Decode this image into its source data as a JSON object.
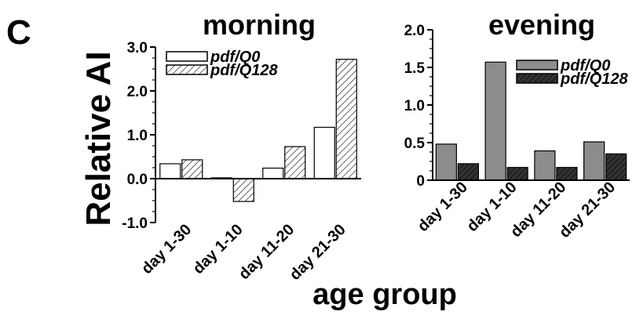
{
  "panel_label": "C",
  "ylabel": "Relative AI",
  "xlabel": "age group",
  "colors": {
    "morning_q0_fill": "#ffffff",
    "morning_q128_fill": "hatch-light",
    "evening_q0_fill": "#8c8c8c",
    "evening_q128_fill": "#333333",
    "stroke": "#000000"
  },
  "chart_data": [
    {
      "type": "bar",
      "title": "morning",
      "categories": [
        "day 1-30",
        "day 1-10",
        "day 11-20",
        "day 21-30"
      ],
      "series": [
        {
          "name": "pdf/Q0",
          "values": [
            0.34,
            0.02,
            0.24,
            1.17
          ]
        },
        {
          "name": "pdf/Q128",
          "values": [
            0.43,
            -0.52,
            0.73,
            2.72
          ]
        }
      ],
      "ylim": [
        -1.0,
        3.0
      ],
      "yticks": [
        -1.0,
        0.0,
        1.0,
        2.0,
        3.0
      ],
      "ytick_labels": [
        "-1.0",
        "0.0",
        "1.0",
        "2.0",
        "3.0"
      ],
      "legend": "top-left",
      "grid": false
    },
    {
      "type": "bar",
      "title": "evening",
      "categories": [
        "day 1-30",
        "day 1-10",
        "day 11-20",
        "day 21-30"
      ],
      "series": [
        {
          "name": "pdf/Q0",
          "values": [
            0.48,
            1.57,
            0.39,
            0.51
          ]
        },
        {
          "name": "pdf/Q128",
          "values": [
            0.22,
            0.17,
            0.17,
            0.35
          ]
        }
      ],
      "ylim": [
        0,
        2.0
      ],
      "yticks": [
        0,
        0.5,
        1.0,
        1.5,
        2.0
      ],
      "ytick_labels": [
        "0",
        "0.5",
        "1.0",
        "1.5",
        "2.0"
      ],
      "legend": "top-right",
      "grid": false
    }
  ]
}
